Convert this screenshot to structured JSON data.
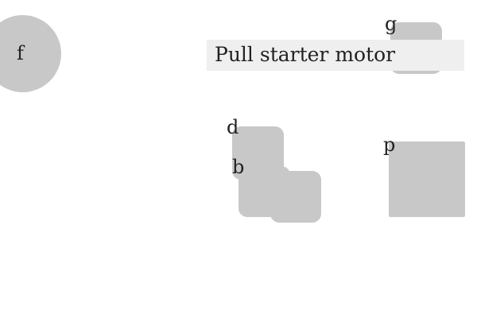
{
  "labels": {
    "f": "f",
    "g": "g",
    "d": "d",
    "b": "b",
    "p": "p"
  },
  "banner": {
    "text": "Pull starter motor"
  },
  "colors": {
    "shape_fill": "#c8c8c8",
    "banner_fill": "#efefef",
    "text": "#222222",
    "background": "#ffffff"
  }
}
